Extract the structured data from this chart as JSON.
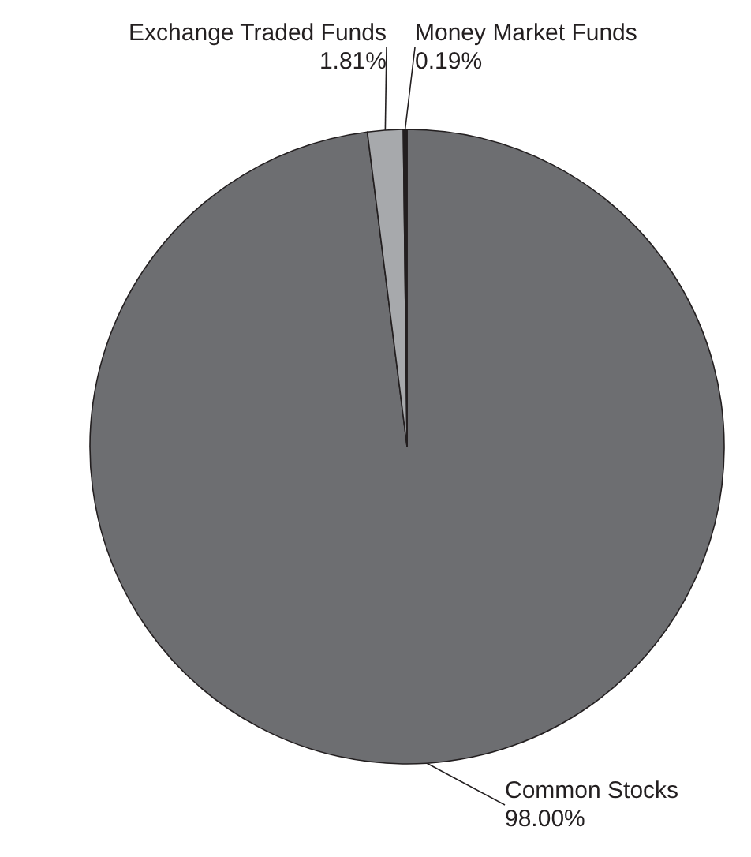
{
  "chart_data": {
    "type": "pie",
    "categories": [
      "Common Stocks",
      "Exchange Traded Funds",
      "Money Market Funds"
    ],
    "values": [
      98.0,
      1.81,
      0.19
    ],
    "colors": [
      "#6d6e71",
      "#a7a9ac",
      "#231f20"
    ],
    "value_labels": [
      "98.00%",
      "1.81%",
      "0.19%"
    ],
    "legend": false
  }
}
